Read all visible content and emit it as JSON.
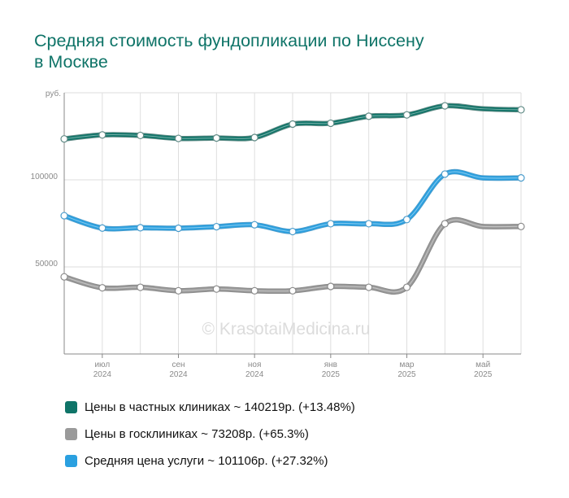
{
  "title": {
    "line1": "Средняя стоимость фундопликации по Ниссену",
    "line2": "в Москве"
  },
  "watermark": "© KrasotaiMedicina.ru",
  "chart_data": {
    "type": "line",
    "title": "Средняя стоимость фундопликации по Ниссену в Москве",
    "ylabel": "руб.",
    "ylim": [
      0,
      150000
    ],
    "yticks": [
      {
        "value": 50000,
        "label": "50000"
      },
      {
        "value": 100000,
        "label": "100000"
      }
    ],
    "x": [
      "2024-05",
      "2024-06",
      "2024-07",
      "2024-08",
      "2024-09",
      "2024-10",
      "2024-11",
      "2024-12",
      "2025-01",
      "2025-02",
      "2025-03",
      "2025-04",
      "2025-05"
    ],
    "xticks": [
      {
        "index": 1,
        "month": "июл",
        "year": "2024"
      },
      {
        "index": 3,
        "month": "сен",
        "year": "2024"
      },
      {
        "index": 5,
        "month": "ноя",
        "year": "2024"
      },
      {
        "index": 7,
        "month": "янв",
        "year": "2025"
      },
      {
        "index": 9,
        "month": "мар",
        "year": "2025"
      },
      {
        "index": 11,
        "month": "май",
        "year": "2025"
      }
    ],
    "grid": true,
    "legend_position": "bottom",
    "series": [
      {
        "name": "Цены в частных клиниках ~ 140219р. (+13.48%)",
        "color": "#0f7468",
        "outline": "#5f8a85",
        "values": [
          123500,
          125800,
          125500,
          123800,
          124000,
          124300,
          132000,
          132500,
          136500,
          137300,
          142500,
          140800,
          140219
        ]
      },
      {
        "name": "Цены в госклиниках ~ 73208р. (+65.3%)",
        "color": "#9a9a9a",
        "outline": "#8a8a8a",
        "values": [
          44300,
          38000,
          38300,
          36300,
          37300,
          36300,
          36300,
          38800,
          38300,
          38300,
          74800,
          73208,
          73208
        ]
      },
      {
        "name": "Средняя цена услуги ~ 101106р. (+27.32%)",
        "color": "#2aa0e0",
        "outline": "#4a9ccc",
        "values": [
          79400,
          72300,
          72500,
          72200,
          73100,
          74200,
          70300,
          74800,
          74800,
          77200,
          103300,
          101106,
          101106
        ]
      }
    ]
  }
}
